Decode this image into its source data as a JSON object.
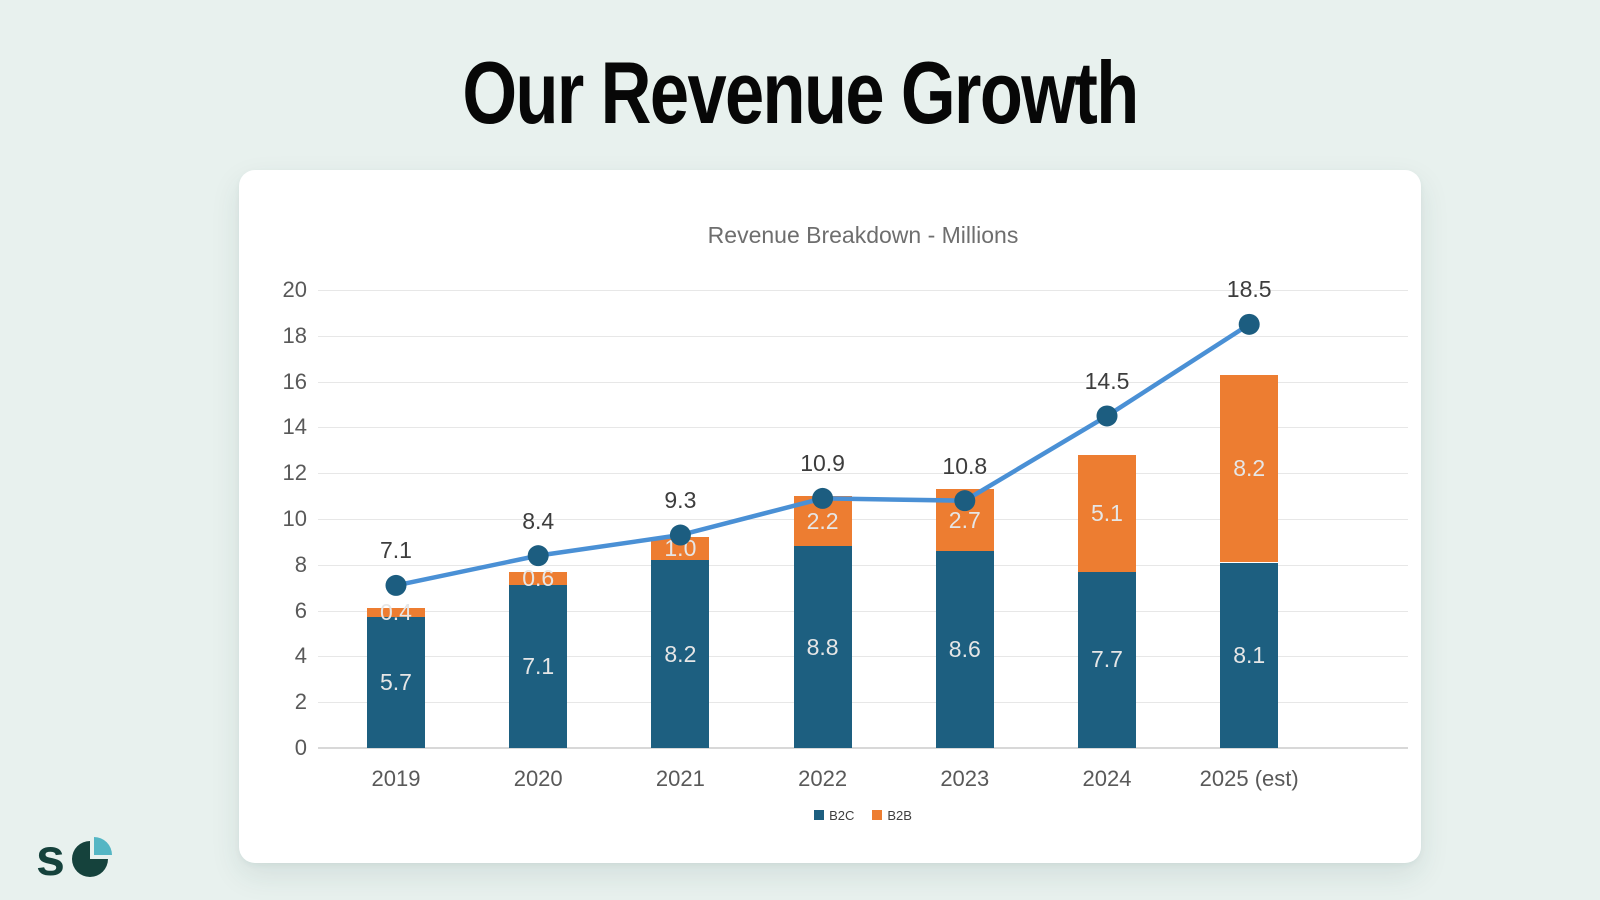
{
  "page": {
    "title": "Our Revenue Growth"
  },
  "logo": {
    "text": "s",
    "dark_color": "#15423c",
    "light_color": "#54b6c4"
  },
  "chart_data": {
    "type": "combo",
    "title": "Revenue Breakdown - Millions",
    "categories": [
      "2019",
      "2020",
      "2021",
      "2022",
      "2023",
      "2024",
      "2025 (est)"
    ],
    "stacked": true,
    "series": [
      {
        "name": "B2C",
        "type": "bar",
        "color": "#1d5f80",
        "show_in_legend": true,
        "values": [
          5.7,
          7.1,
          8.2,
          8.8,
          8.6,
          7.7,
          8.1
        ]
      },
      {
        "name": "B2B",
        "type": "bar",
        "color": "#ed7d31",
        "show_in_legend": true,
        "values": [
          0.4,
          0.6,
          1.0,
          2.2,
          2.7,
          5.1,
          8.2
        ]
      },
      {
        "type": "line",
        "color": "#4a90d5",
        "marker_color": "#1c5d80",
        "show_in_legend": false,
        "values": [
          7.1,
          8.4,
          9.3,
          10.9,
          10.8,
          14.5,
          18.5
        ]
      }
    ],
    "ylim": [
      0,
      20
    ],
    "ytick_step": 2,
    "grid": "horizontal",
    "legend_position": "bottom",
    "styles": {
      "axis_label_color": "#595959",
      "gridline_color": "#e7e7e7",
      "bar_value_label_color": "#e6e6e6",
      "point_label_color": "#3d3d3d",
      "title_color": "#6e6e6e"
    }
  }
}
